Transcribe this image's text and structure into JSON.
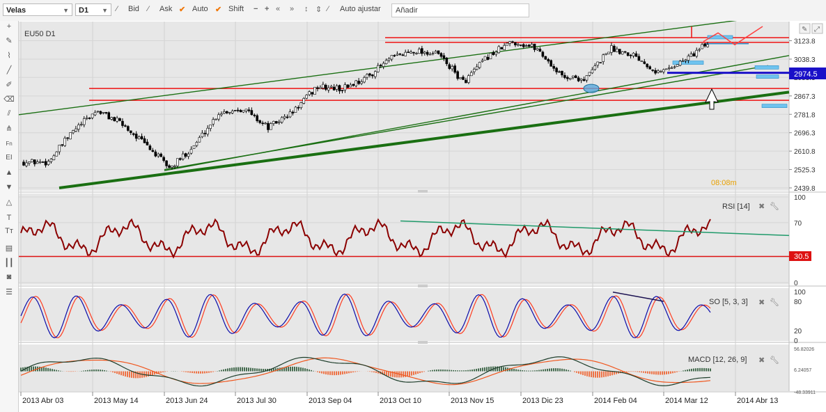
{
  "toolbar": {
    "chart_type": "Velas",
    "timeframe": "D1",
    "bid_label": "Bid",
    "ask_label": "Ask",
    "auto_label": "Auto",
    "shift_label": "Shift",
    "auto_adjust_label": "Auto ajustar",
    "add_placeholder": "Añadir"
  },
  "left_tools": [
    "plus-icon",
    "pencil-icon",
    "brush-icon",
    "line-icon",
    "pen-icon",
    "eraser-icon",
    "channel-icon",
    "pitchfork-icon",
    "Fn",
    "EI",
    "arrow-up-icon",
    "arrow-down-icon",
    "shape-icon",
    "T",
    "Tт",
    "layers-icon",
    "bars-icon",
    "camera-icon",
    "list-icon"
  ],
  "main": {
    "symbol_label": "EU50 D1",
    "current_price": "2974.5",
    "countdown": "08:08m",
    "colors": {
      "price_box": "#1a10c8",
      "red_level": "#e11",
      "green_trend": "#1a6f12",
      "candle": "#000000"
    }
  },
  "rsi": {
    "label": "RSI [14]",
    "level_value": "30.5"
  },
  "so": {
    "label": "SO [5, 3, 3]"
  },
  "macd": {
    "label": "MACD [12, 26, 9]"
  },
  "chart_data": [
    {
      "type": "candlestick",
      "title": "EU50 D1",
      "y_ticks": [
        "3123.8",
        "3038.3",
        "2953.3",
        "2867.3",
        "2781.8",
        "2696.3",
        "2610.8",
        "2525.3",
        "2439.8"
      ],
      "ylim": [
        2439.8,
        3166.0
      ],
      "x_ticks": [
        "2013 Abr 03",
        "2013 May 14",
        "2013 Jun 24",
        "2013 Jul 30",
        "2013 Sep 04",
        "2013 Oct 10",
        "2013 Nov 15",
        "2013 Dic 23",
        "2014 Feb 04",
        "2014 Mar 12",
        "2014 Abr 13"
      ],
      "close_path": [
        {
          "x": "2013 Abr 03",
          "y": 2560
        },
        {
          "x": "2013 Abr 20",
          "y": 2560
        },
        {
          "x": "2013 May 01",
          "y": 2700
        },
        {
          "x": "2013 May 14",
          "y": 2800
        },
        {
          "x": "2013 May 24",
          "y": 2740
        },
        {
          "x": "2013 Jun 10",
          "y": 2640
        },
        {
          "x": "2013 Jun 24",
          "y": 2530
        },
        {
          "x": "2013 Jul 10",
          "y": 2640
        },
        {
          "x": "2013 Jul 30",
          "y": 2790
        },
        {
          "x": "2013 Aug 10",
          "y": 2810
        },
        {
          "x": "2013 Aug 22",
          "y": 2720
        },
        {
          "x": "2013 Sep 04",
          "y": 2790
        },
        {
          "x": "2013 Sep 20",
          "y": 2910
        },
        {
          "x": "2013 Oct 04",
          "y": 2900
        },
        {
          "x": "2013 Oct 10",
          "y": 2950
        },
        {
          "x": "2013 Oct 25",
          "y": 3040
        },
        {
          "x": "2013 Nov 15",
          "y": 3080
        },
        {
          "x": "2013 Nov 25",
          "y": 3060
        },
        {
          "x": "2013 Dic 05",
          "y": 2930
        },
        {
          "x": "2013 Dic 23",
          "y": 3050
        },
        {
          "x": "2014 Ene 05",
          "y": 3120
        },
        {
          "x": "2014 Ene 15",
          "y": 3090
        },
        {
          "x": "2014 Ene 28",
          "y": 2960
        },
        {
          "x": "2014 Feb 04",
          "y": 2945
        },
        {
          "x": "2014 Feb 20",
          "y": 3090
        },
        {
          "x": "2014 Mar 05",
          "y": 3060
        },
        {
          "x": "2014 Mar 12",
          "y": 2975
        },
        {
          "x": "2014 Mar 20",
          "y": 3030
        },
        {
          "x": "2014 Mar 28",
          "y": 3110
        }
      ],
      "horizontal_levels": [
        3138,
        3116,
        2902,
        2847
      ],
      "current_price": 2974.5
    },
    {
      "type": "line",
      "title": "RSI [14]",
      "y_ticks": [
        "100",
        "70",
        "30.5",
        "0"
      ],
      "ylim": [
        0,
        100
      ]
    },
    {
      "type": "line",
      "title": "SO [5, 3, 3]",
      "y_ticks": [
        "100",
        "80",
        "20",
        "0"
      ],
      "ylim": [
        0,
        100
      ]
    },
    {
      "type": "bar",
      "title": "MACD [12, 26, 9]",
      "y_ticks": [
        "56.82026",
        "6.24057",
        "-48.33911"
      ],
      "ylim": [
        -48.33911,
        56.82026
      ]
    }
  ]
}
